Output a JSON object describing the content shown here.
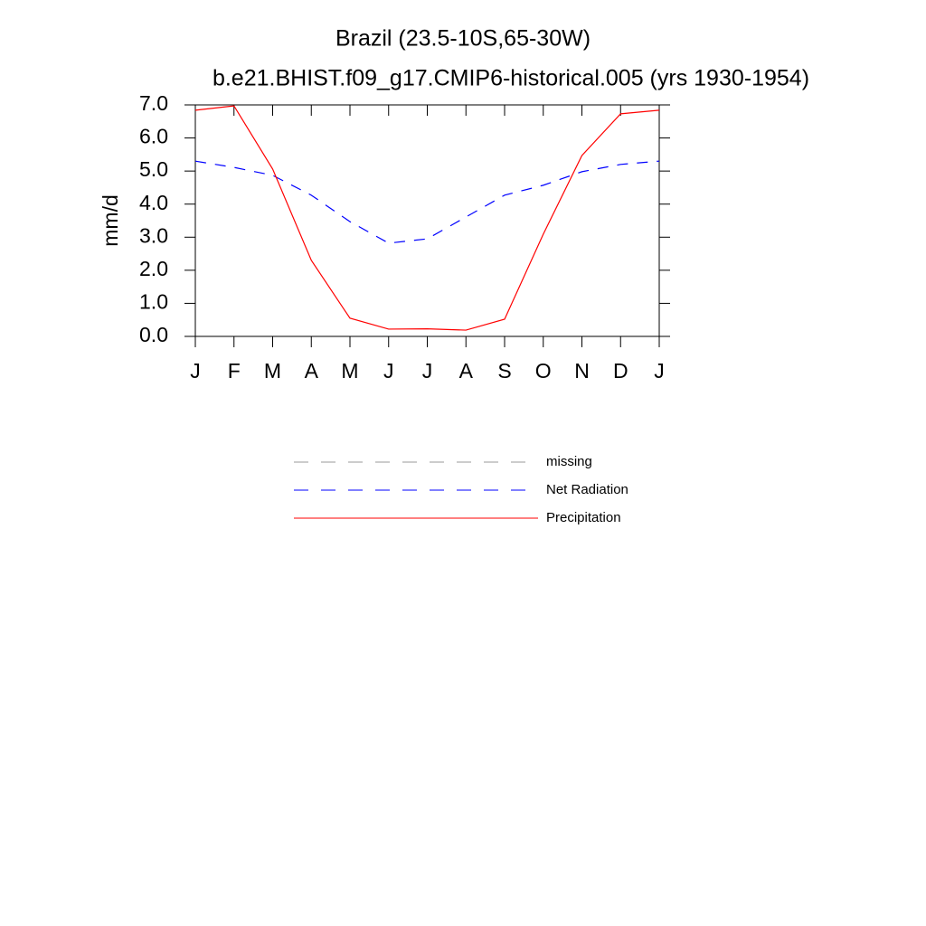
{
  "chart_data": {
    "type": "line",
    "title": "Brazil (23.5-10S,65-30W)",
    "subtitle": "b.e21.BHIST.f09_g17.CMIP6-historical.005 (yrs 1930-1954)",
    "y_label": "mm/d",
    "categories": [
      "J",
      "F",
      "M",
      "A",
      "M",
      "J",
      "J",
      "A",
      "S",
      "O",
      "N",
      "D",
      "J"
    ],
    "ylim": [
      0,
      7
    ],
    "yticks": [
      {
        "value": 0,
        "label": "0.0"
      },
      {
        "value": 1,
        "label": "1.0"
      },
      {
        "value": 2,
        "label": "2.0"
      },
      {
        "value": 3,
        "label": "3.0"
      },
      {
        "value": 4,
        "label": "4.0"
      },
      {
        "value": 5,
        "label": "5.0"
      },
      {
        "value": 6,
        "label": "6.0"
      },
      {
        "value": 7,
        "label": "7.0"
      }
    ],
    "series": [
      {
        "name": "missing",
        "color": "#999999",
        "dash": true,
        "values": [
          null,
          null,
          null,
          null,
          null,
          null,
          null,
          null,
          null,
          null,
          null,
          null,
          null
        ]
      },
      {
        "name": "Net Radiation",
        "color": "#0000ff",
        "dash": true,
        "values": [
          5.3,
          5.11,
          4.87,
          4.27,
          3.47,
          2.82,
          2.95,
          3.61,
          4.27,
          4.57,
          4.98,
          5.2,
          5.3
        ]
      },
      {
        "name": "Precipitation",
        "color": "#ff0000",
        "dash": false,
        "values": [
          6.84,
          6.97,
          5.06,
          2.3,
          0.55,
          0.22,
          0.23,
          0.19,
          0.52,
          3.09,
          5.47,
          6.73,
          6.84
        ]
      }
    ]
  }
}
